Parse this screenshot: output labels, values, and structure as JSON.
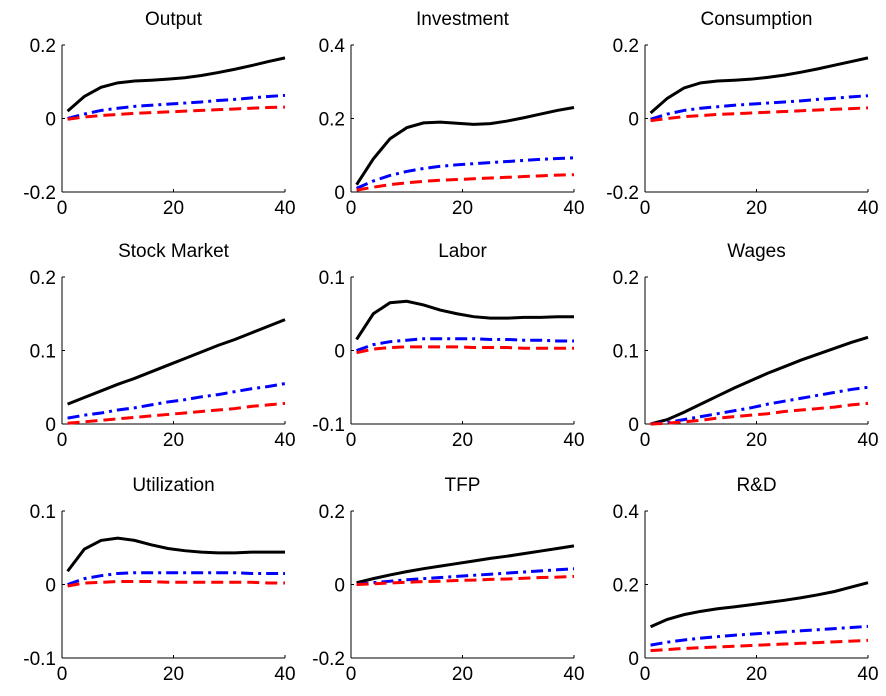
{
  "chart_data": [
    {
      "type": "line",
      "title": "Output",
      "x": [
        1,
        4,
        7,
        10,
        13,
        16,
        19,
        22,
        25,
        28,
        31,
        34,
        37,
        40
      ],
      "xlim": [
        0,
        40
      ],
      "xticks": [
        0,
        20,
        40
      ],
      "ylim": [
        -0.2,
        0.2
      ],
      "yticks": [
        -0.2,
        0,
        0.2
      ],
      "series": [
        {
          "color": "#000000",
          "dash": "solid",
          "values": [
            0.02,
            0.06,
            0.085,
            0.097,
            0.102,
            0.104,
            0.107,
            0.111,
            0.117,
            0.125,
            0.134,
            0.144,
            0.155,
            0.165
          ]
        },
        {
          "color": "#0000ff",
          "dash": "dashdot",
          "values": [
            0.0,
            0.012,
            0.022,
            0.028,
            0.033,
            0.036,
            0.039,
            0.042,
            0.045,
            0.049,
            0.052,
            0.056,
            0.06,
            0.063
          ]
        },
        {
          "color": "#ff0000",
          "dash": "dashed",
          "values": [
            -0.002,
            0.004,
            0.008,
            0.011,
            0.014,
            0.016,
            0.018,
            0.02,
            0.022,
            0.024,
            0.026,
            0.028,
            0.03,
            0.031
          ]
        }
      ]
    },
    {
      "type": "line",
      "title": "Investment",
      "x": [
        1,
        4,
        7,
        10,
        13,
        16,
        19,
        22,
        25,
        28,
        31,
        34,
        37,
        40
      ],
      "xlim": [
        0,
        40
      ],
      "xticks": [
        0,
        20,
        40
      ],
      "ylim": [
        0,
        0.4
      ],
      "yticks": [
        0,
        0.2,
        0.4
      ],
      "series": [
        {
          "color": "#000000",
          "dash": "solid",
          "values": [
            0.02,
            0.09,
            0.145,
            0.175,
            0.188,
            0.19,
            0.187,
            0.184,
            0.186,
            0.193,
            0.202,
            0.212,
            0.222,
            0.23
          ]
        },
        {
          "color": "#0000ff",
          "dash": "dashdot",
          "values": [
            0.01,
            0.03,
            0.045,
            0.056,
            0.064,
            0.07,
            0.074,
            0.077,
            0.08,
            0.083,
            0.086,
            0.089,
            0.091,
            0.093
          ]
        },
        {
          "color": "#ff0000",
          "dash": "dashed",
          "values": [
            0.005,
            0.013,
            0.02,
            0.025,
            0.029,
            0.032,
            0.034,
            0.036,
            0.038,
            0.04,
            0.042,
            0.044,
            0.046,
            0.047
          ]
        }
      ]
    },
    {
      "type": "line",
      "title": "Consumption",
      "x": [
        1,
        4,
        7,
        10,
        13,
        16,
        19,
        22,
        25,
        28,
        31,
        34,
        37,
        40
      ],
      "xlim": [
        0,
        40
      ],
      "xticks": [
        0,
        20,
        40
      ],
      "ylim": [
        -0.2,
        0.2
      ],
      "yticks": [
        -0.2,
        0,
        0.2
      ],
      "series": [
        {
          "color": "#000000",
          "dash": "solid",
          "values": [
            0.015,
            0.055,
            0.083,
            0.097,
            0.102,
            0.104,
            0.107,
            0.112,
            0.118,
            0.126,
            0.135,
            0.145,
            0.155,
            0.165
          ]
        },
        {
          "color": "#0000ff",
          "dash": "dashdot",
          "values": [
            -0.002,
            0.012,
            0.022,
            0.028,
            0.032,
            0.036,
            0.039,
            0.042,
            0.045,
            0.048,
            0.052,
            0.055,
            0.059,
            0.062
          ]
        },
        {
          "color": "#ff0000",
          "dash": "dashed",
          "values": [
            -0.006,
            0.0,
            0.005,
            0.008,
            0.011,
            0.013,
            0.015,
            0.017,
            0.019,
            0.021,
            0.023,
            0.025,
            0.027,
            0.029
          ]
        }
      ]
    },
    {
      "type": "line",
      "title": "Stock Market",
      "x": [
        1,
        4,
        7,
        10,
        13,
        16,
        19,
        22,
        25,
        28,
        31,
        34,
        37,
        40
      ],
      "xlim": [
        0,
        40
      ],
      "xticks": [
        0,
        20,
        40
      ],
      "ylim": [
        0,
        0.2
      ],
      "yticks": [
        0,
        0.1,
        0.2
      ],
      "series": [
        {
          "color": "#000000",
          "dash": "solid",
          "values": [
            0.027,
            0.036,
            0.045,
            0.054,
            0.062,
            0.071,
            0.08,
            0.089,
            0.098,
            0.107,
            0.115,
            0.124,
            0.133,
            0.142
          ]
        },
        {
          "color": "#0000ff",
          "dash": "dashdot",
          "values": [
            0.008,
            0.012,
            0.015,
            0.019,
            0.022,
            0.026,
            0.03,
            0.033,
            0.037,
            0.04,
            0.044,
            0.048,
            0.051,
            0.055
          ]
        },
        {
          "color": "#ff0000",
          "dash": "dashed",
          "values": [
            0.001,
            0.003,
            0.005,
            0.007,
            0.009,
            0.011,
            0.013,
            0.015,
            0.017,
            0.019,
            0.021,
            0.024,
            0.026,
            0.028
          ]
        }
      ]
    },
    {
      "type": "line",
      "title": "Labor",
      "x": [
        1,
        4,
        7,
        10,
        13,
        16,
        19,
        22,
        25,
        28,
        31,
        34,
        37,
        40
      ],
      "xlim": [
        0,
        40
      ],
      "xticks": [
        0,
        20,
        40
      ],
      "ylim": [
        -0.1,
        0.1
      ],
      "yticks": [
        -0.1,
        0,
        0.1
      ],
      "series": [
        {
          "color": "#000000",
          "dash": "solid",
          "values": [
            0.015,
            0.05,
            0.065,
            0.067,
            0.062,
            0.055,
            0.05,
            0.046,
            0.044,
            0.044,
            0.045,
            0.045,
            0.046,
            0.046
          ]
        },
        {
          "color": "#0000ff",
          "dash": "dashdot",
          "values": [
            0.0,
            0.008,
            0.012,
            0.014,
            0.016,
            0.016,
            0.016,
            0.016,
            0.015,
            0.015,
            0.014,
            0.014,
            0.013,
            0.013
          ]
        },
        {
          "color": "#ff0000",
          "dash": "dashed",
          "values": [
            -0.003,
            0.002,
            0.004,
            0.005,
            0.005,
            0.005,
            0.005,
            0.004,
            0.004,
            0.004,
            0.003,
            0.003,
            0.003,
            0.003
          ]
        }
      ]
    },
    {
      "type": "line",
      "title": "Wages",
      "x": [
        1,
        4,
        7,
        10,
        13,
        16,
        19,
        22,
        25,
        28,
        31,
        34,
        37,
        40
      ],
      "xlim": [
        0,
        40
      ],
      "xticks": [
        0,
        20,
        40
      ],
      "ylim": [
        0,
        0.2
      ],
      "yticks": [
        0,
        0.1,
        0.2
      ],
      "series": [
        {
          "color": "#000000",
          "dash": "solid",
          "values": [
            0.0,
            0.006,
            0.016,
            0.027,
            0.038,
            0.049,
            0.059,
            0.069,
            0.078,
            0.087,
            0.095,
            0.103,
            0.111,
            0.118
          ]
        },
        {
          "color": "#0000ff",
          "dash": "dashdot",
          "values": [
            0.0,
            0.002,
            0.006,
            0.01,
            0.014,
            0.018,
            0.022,
            0.027,
            0.031,
            0.035,
            0.039,
            0.043,
            0.047,
            0.05
          ]
        },
        {
          "color": "#ff0000",
          "dash": "dashed",
          "values": [
            0.0,
            0.001,
            0.003,
            0.005,
            0.008,
            0.01,
            0.012,
            0.014,
            0.017,
            0.019,
            0.021,
            0.023,
            0.026,
            0.028
          ]
        }
      ]
    },
    {
      "type": "line",
      "title": "Utilization",
      "x": [
        1,
        4,
        7,
        10,
        13,
        16,
        19,
        22,
        25,
        28,
        31,
        34,
        37,
        40
      ],
      "xlim": [
        0,
        40
      ],
      "xticks": [
        0,
        20,
        40
      ],
      "ylim": [
        -0.1,
        0.1
      ],
      "yticks": [
        -0.1,
        0,
        0.1
      ],
      "series": [
        {
          "color": "#000000",
          "dash": "solid",
          "values": [
            0.018,
            0.048,
            0.06,
            0.063,
            0.06,
            0.054,
            0.049,
            0.046,
            0.044,
            0.043,
            0.043,
            0.044,
            0.044,
            0.044
          ]
        },
        {
          "color": "#0000ff",
          "dash": "dashdot",
          "values": [
            0.0,
            0.008,
            0.012,
            0.015,
            0.016,
            0.016,
            0.016,
            0.016,
            0.016,
            0.016,
            0.016,
            0.015,
            0.015,
            0.015
          ]
        },
        {
          "color": "#ff0000",
          "dash": "dashed",
          "values": [
            -0.002,
            0.002,
            0.003,
            0.004,
            0.004,
            0.004,
            0.003,
            0.003,
            0.003,
            0.003,
            0.003,
            0.003,
            0.002,
            0.002
          ]
        }
      ]
    },
    {
      "type": "line",
      "title": "TFP",
      "x": [
        1,
        4,
        7,
        10,
        13,
        16,
        19,
        22,
        25,
        28,
        31,
        34,
        37,
        40
      ],
      "xlim": [
        0,
        40
      ],
      "xticks": [
        0,
        20,
        40
      ],
      "ylim": [
        -0.2,
        0.2
      ],
      "yticks": [
        -0.2,
        0,
        0.2
      ],
      "series": [
        {
          "color": "#000000",
          "dash": "solid",
          "values": [
            0.005,
            0.016,
            0.026,
            0.035,
            0.043,
            0.05,
            0.057,
            0.064,
            0.071,
            0.077,
            0.084,
            0.091,
            0.098,
            0.105
          ]
        },
        {
          "color": "#0000ff",
          "dash": "dashdot",
          "values": [
            0.0,
            0.005,
            0.009,
            0.013,
            0.016,
            0.019,
            0.022,
            0.025,
            0.028,
            0.031,
            0.034,
            0.037,
            0.04,
            0.043
          ]
        },
        {
          "color": "#ff0000",
          "dash": "dashed",
          "values": [
            0.0,
            0.002,
            0.004,
            0.006,
            0.008,
            0.009,
            0.011,
            0.012,
            0.014,
            0.015,
            0.017,
            0.019,
            0.02,
            0.022
          ]
        }
      ]
    },
    {
      "type": "line",
      "title": "R&D",
      "x": [
        1,
        4,
        7,
        10,
        13,
        16,
        19,
        22,
        25,
        28,
        31,
        34,
        37,
        40
      ],
      "xlim": [
        0,
        40
      ],
      "xticks": [
        0,
        20,
        40
      ],
      "ylim": [
        0,
        0.4
      ],
      "yticks": [
        0,
        0.2,
        0.4
      ],
      "series": [
        {
          "color": "#000000",
          "dash": "solid",
          "values": [
            0.085,
            0.105,
            0.118,
            0.127,
            0.134,
            0.139,
            0.145,
            0.151,
            0.157,
            0.164,
            0.172,
            0.181,
            0.193,
            0.205
          ]
        },
        {
          "color": "#0000ff",
          "dash": "dashdot",
          "values": [
            0.035,
            0.043,
            0.049,
            0.054,
            0.058,
            0.062,
            0.065,
            0.068,
            0.071,
            0.074,
            0.077,
            0.08,
            0.083,
            0.086
          ]
        },
        {
          "color": "#ff0000",
          "dash": "dashed",
          "values": [
            0.02,
            0.023,
            0.026,
            0.028,
            0.03,
            0.032,
            0.034,
            0.036,
            0.038,
            0.04,
            0.042,
            0.044,
            0.046,
            0.048
          ]
        }
      ]
    }
  ]
}
